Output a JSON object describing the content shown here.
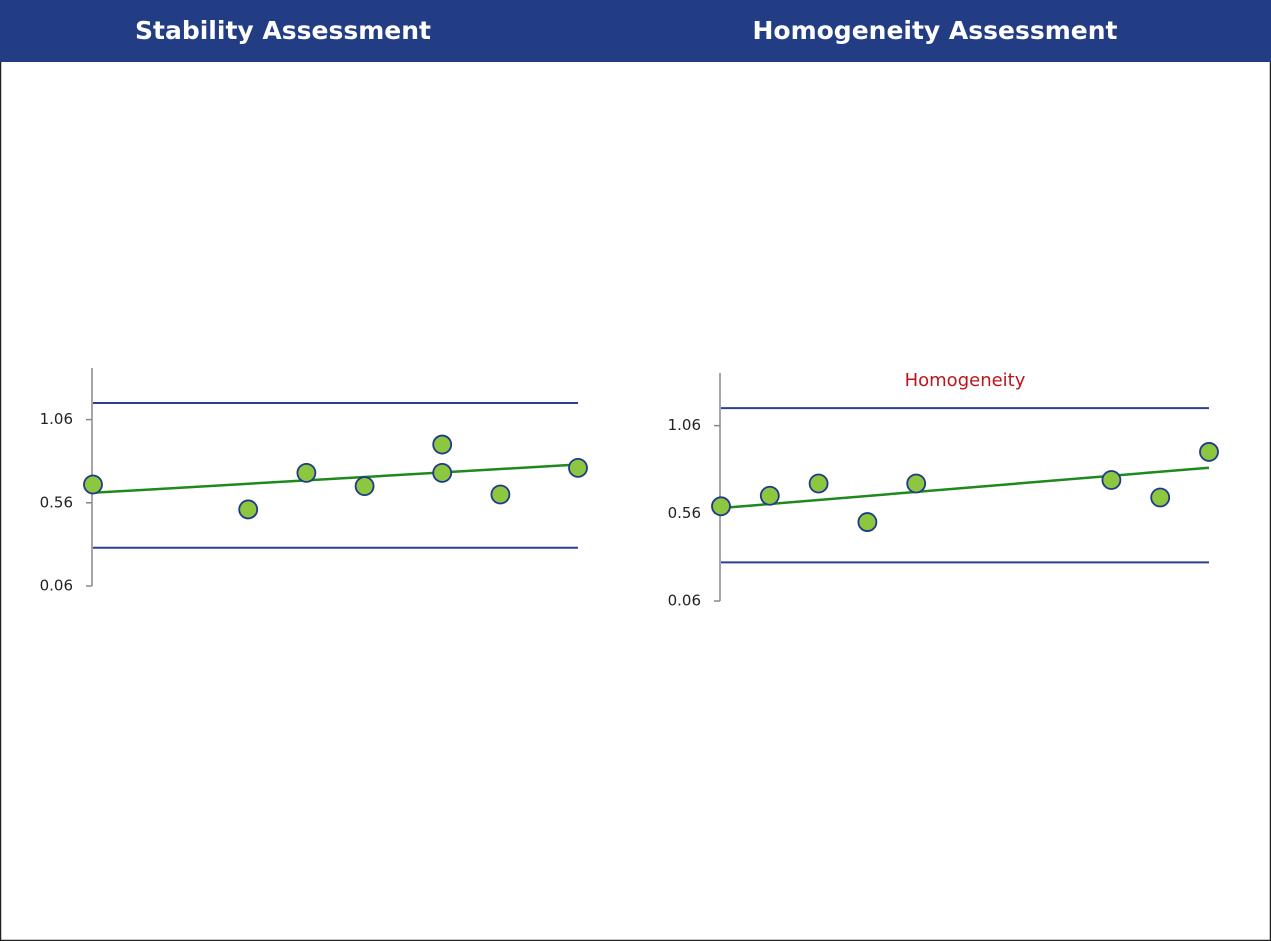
{
  "header": {
    "left": "Stability Assessment",
    "right": "Homogeneity Assessment"
  },
  "chart_data": [
    {
      "type": "scatter",
      "x": [
        0,
        8,
        11,
        14,
        18,
        18,
        21,
        25
      ],
      "values": [
        0.67,
        0.52,
        0.74,
        0.66,
        0.91,
        0.74,
        0.61,
        0.77
      ],
      "color": "#8dc63f",
      "edge_color": "#1f3a8a",
      "trend": {
        "x": [
          0,
          25
        ],
        "values": [
          0.62,
          0.79
        ],
        "color": "#1e8a1e"
      },
      "limits": {
        "values": [
          1.16,
          0.29
        ],
        "color": "#2e3f8f"
      },
      "xlim": [
        0,
        25
      ],
      "ylim": [
        0.06,
        1.37
      ],
      "yticks": [
        0.06,
        0.56,
        1.06
      ]
    },
    {
      "type": "scatter",
      "title": "Homogeneity",
      "x": [
        0,
        1,
        2,
        3,
        4,
        8,
        9,
        10
      ],
      "values": [
        0.6,
        0.66,
        0.73,
        0.51,
        0.73,
        0.75,
        0.65,
        0.91
      ],
      "color": "#8dc63f",
      "edge_color": "#1f3a8a",
      "trend": {
        "x": [
          0,
          10
        ],
        "values": [
          0.59,
          0.82
        ],
        "color": "#1e8a1e"
      },
      "limits": {
        "values": [
          1.16,
          0.28
        ],
        "color": "#2e3f8f"
      },
      "xlim": [
        0,
        10
      ],
      "ylim": [
        0.06,
        1.36
      ],
      "yticks": [
        0.06,
        0.56,
        1.06
      ]
    }
  ]
}
